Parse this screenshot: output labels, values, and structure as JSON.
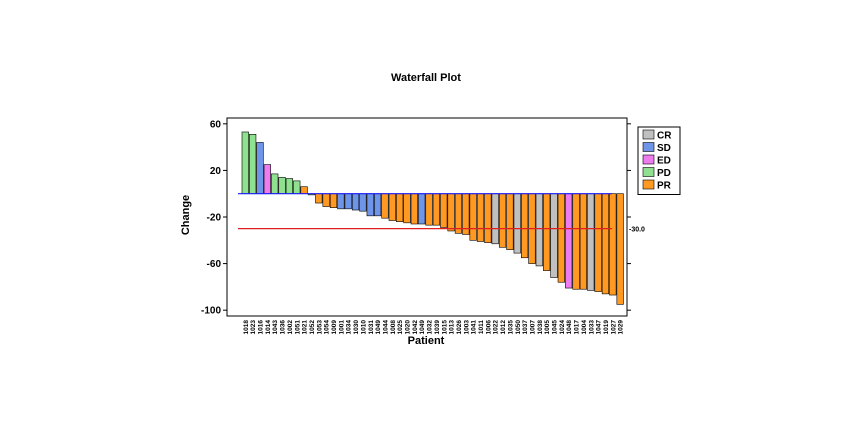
{
  "chart_data": {
    "type": "bar",
    "title": "Waterfall Plot",
    "xlabel": "Patient",
    "ylabel": "Change",
    "ylim": [
      -105,
      65
    ],
    "yticks": [
      60,
      20,
      -20,
      -60,
      -100
    ],
    "grid": false,
    "legend_position": "right",
    "reference_line": {
      "value": -30,
      "label": "-30.0",
      "color": "#e02020"
    },
    "zero_line_color": "#1a1aff",
    "legend": [
      {
        "code": "CR",
        "label": "CR",
        "color": "#c0c0c0"
      },
      {
        "code": "SD",
        "label": "SD",
        "color": "#6f95e8"
      },
      {
        "code": "ED",
        "label": "ED",
        "color": "#ee7cee"
      },
      {
        "code": "PD",
        "label": "PD",
        "color": "#8fe08f"
      },
      {
        "code": "PR",
        "label": "PR",
        "color": "#ff9922"
      }
    ],
    "categories": [
      "1018",
      "1023",
      "1016",
      "1014",
      "1043",
      "1036",
      "1002",
      "1051",
      "1021",
      "1052",
      "1053",
      "1054",
      "1009",
      "1001",
      "1034",
      "1030",
      "1010",
      "1031",
      "1049",
      "1044",
      "1008",
      "1025",
      "1020",
      "1042",
      "1049",
      "1032",
      "1039",
      "1015",
      "1013",
      "1026",
      "1003",
      "1041",
      "1011",
      "1006",
      "1022",
      "1012",
      "1035",
      "1050",
      "1037",
      "1007",
      "1038",
      "1005",
      "1045",
      "1024",
      "1048",
      "1017",
      "1004",
      "1033",
      "1047",
      "1019",
      "1027",
      "1029"
    ],
    "values": [
      53,
      51,
      44,
      25,
      17,
      14,
      13,
      11,
      6,
      -1,
      -8,
      -11,
      -12,
      -13,
      -13,
      -14,
      -15,
      -19,
      -19,
      -21,
      -23,
      -24,
      -25,
      -26,
      -26,
      -27,
      -27,
      -29,
      -32,
      -34,
      -35,
      -40,
      -41,
      -42,
      -43,
      -46,
      -48,
      -51,
      -55,
      -60,
      -62,
      -66,
      -72,
      -76,
      -81,
      -82,
      -82,
      -83,
      -84,
      -86,
      -87,
      -95
    ],
    "statuses": [
      "PD",
      "PD",
      "SD",
      "ED",
      "PD",
      "PD",
      "PD",
      "PD",
      "PR",
      "PD",
      "PR",
      "PR",
      "PR",
      "SD",
      "SD",
      "SD",
      "SD",
      "SD",
      "SD",
      "PR",
      "PR",
      "PR",
      "PR",
      "PR",
      "SD",
      "PR",
      "PR",
      "PR",
      "PR",
      "PR",
      "PR",
      "PR",
      "PR",
      "PR",
      "CR",
      "PR",
      "PR",
      "CR",
      "PR",
      "PR",
      "CR",
      "PR",
      "CR",
      "PR",
      "ED",
      "PR",
      "PR",
      "CR",
      "PR",
      "PR",
      "PR",
      "PR"
    ]
  }
}
